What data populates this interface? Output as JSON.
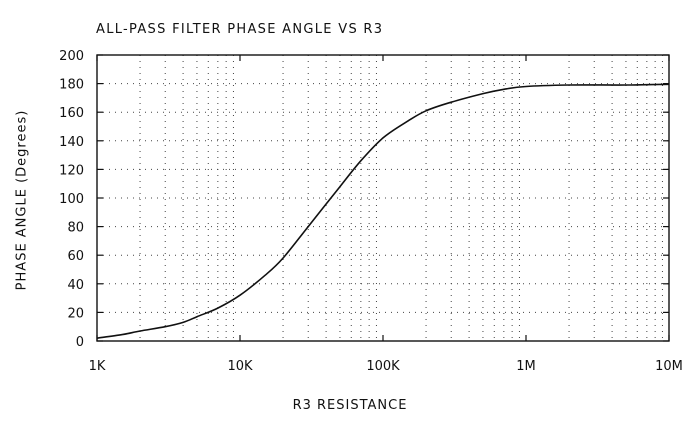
{
  "chart_data": {
    "type": "line",
    "title": "ALL-PASS FILTER PHASE ANGLE VS R3",
    "xlabel": "R3 RESISTANCE",
    "ylabel": "PHASE ANGLE (Degrees)",
    "x_scale": "log",
    "xlim": [
      1000,
      10000000
    ],
    "ylim": [
      0,
      200
    ],
    "x_ticks": [
      {
        "value": 1000,
        "label": "1K"
      },
      {
        "value": 10000,
        "label": "10K"
      },
      {
        "value": 100000,
        "label": "100K"
      },
      {
        "value": 1000000,
        "label": "1M"
      },
      {
        "value": 10000000,
        "label": "10M"
      }
    ],
    "y_ticks": [
      {
        "value": 0,
        "label": "0"
      },
      {
        "value": 20,
        "label": "20"
      },
      {
        "value": 40,
        "label": "40"
      },
      {
        "value": 60,
        "label": "60"
      },
      {
        "value": 80,
        "label": "80"
      },
      {
        "value": 100,
        "label": "100"
      },
      {
        "value": 120,
        "label": "120"
      },
      {
        "value": 140,
        "label": "140"
      },
      {
        "value": 160,
        "label": "160"
      },
      {
        "value": 180,
        "label": "180"
      },
      {
        "value": 200,
        "label": "200"
      }
    ],
    "grid": "dotted",
    "series": [
      {
        "x": [
          1000,
          1500,
          2000,
          3000,
          4000,
          5000,
          7000,
          10000,
          15000,
          20000,
          30000,
          50000,
          70000,
          100000,
          150000,
          200000,
          300000,
          500000,
          700000,
          1000000,
          2000000,
          5000000,
          10000000
        ],
        "y": [
          2,
          4.5,
          7,
          10,
          13,
          17,
          23,
          32,
          46,
          58,
          80,
          108,
          126,
          142,
          154,
          161,
          167,
          173,
          176,
          178,
          179,
          179,
          179.5
        ]
      }
    ]
  }
}
